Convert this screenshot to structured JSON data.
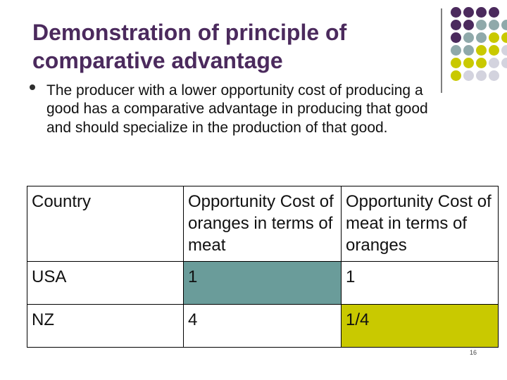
{
  "slide": {
    "title_line1": "Demonstration of principle of",
    "title_line2": "comparative advantage",
    "bullet_text": "The producer with a lower opportunity cost of producing a good has a comparative advantage in producing that good and should specialize in the production of that good.",
    "page_number": "16"
  },
  "table": {
    "headers": [
      "Country",
      "Opportunity Cost of oranges in terms of meat",
      "Opportunity Cost of meat in terms of oranges"
    ],
    "rows": [
      [
        "USA",
        "1",
        "1"
      ],
      [
        "NZ",
        "4",
        "1/4"
      ]
    ]
  },
  "colors": {
    "title": "#4b2a5d",
    "teal_highlight": "#6a9c9a",
    "olive_highlight": "#c9c900",
    "dot_purple": "#4b2a5d",
    "dot_teal": "#8fa9aa",
    "dot_olive": "#c9c900",
    "dot_grey": "#d3d3de"
  },
  "decoration": {
    "dot_grid": [
      [
        "purple",
        "purple",
        "purple",
        "purple",
        "none"
      ],
      [
        "purple",
        "purple",
        "teal",
        "teal",
        "teal"
      ],
      [
        "purple",
        "teal",
        "teal",
        "olive",
        "olive"
      ],
      [
        "teal",
        "teal",
        "olive",
        "olive",
        "grey"
      ],
      [
        "olive",
        "olive",
        "olive",
        "grey",
        "grey"
      ],
      [
        "olive",
        "grey",
        "grey",
        "grey",
        "none"
      ]
    ]
  }
}
